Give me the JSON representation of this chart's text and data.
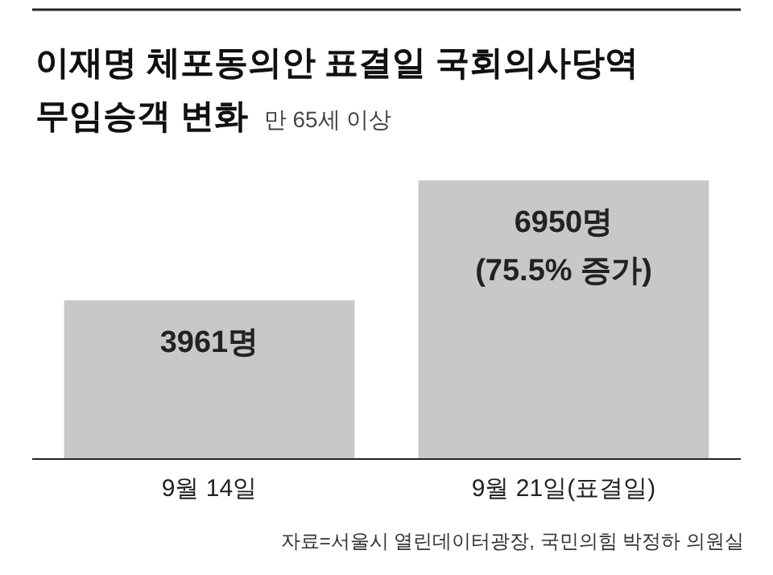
{
  "chart_data": {
    "type": "bar",
    "title": "이재명 체포동의안 표결일 국회의사당역\n무임승객 변화",
    "subtitle": "만 65세 이상",
    "categories": [
      "9월 14일",
      "9월 21일(표결일)"
    ],
    "values": [
      3961,
      6950
    ],
    "value_labels": [
      "3961명",
      "6950명\n(75.5% 증가)"
    ],
    "colors": [
      "#c8c8c8",
      "#c8c8c8"
    ],
    "annotations": [
      "자료=서울시 열린데이터광장, 국민의힘 박정하 의원실"
    ]
  }
}
